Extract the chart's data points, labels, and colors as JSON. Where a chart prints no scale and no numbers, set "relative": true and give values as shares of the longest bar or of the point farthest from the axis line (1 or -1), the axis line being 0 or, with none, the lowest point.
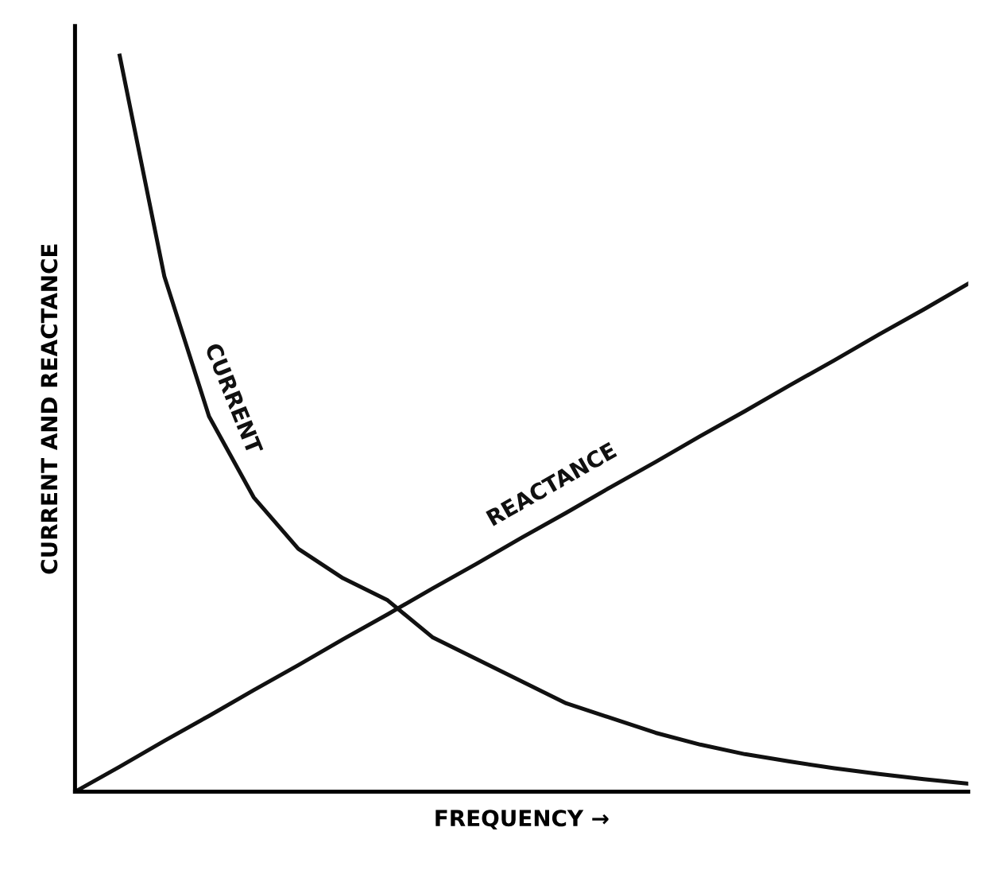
{
  "chart_data": {
    "type": "line",
    "relative": true,
    "xlabel": "FREQUENCY →",
    "ylabel": "CURRENT AND REACTANCE",
    "legend": false,
    "marker": "none",
    "line_style": "solid",
    "categories": [
      null,
      null,
      null,
      null,
      null,
      null,
      null,
      null,
      null,
      null,
      null,
      null,
      null,
      null,
      null,
      null,
      null,
      null,
      null,
      null,
      null
    ],
    "series": [
      {
        "name": "CURRENT",
        "color": "#111111",
        "values": [
          null,
          1.0,
          0.7,
          0.51,
          0.4,
          0.33,
          0.29,
          0.26,
          0.21,
          0.18,
          0.15,
          0.12,
          0.1,
          0.08,
          0.064,
          0.051,
          0.041,
          0.032,
          0.024,
          0.017,
          0.011
        ]
      },
      {
        "name": "REACTANCE",
        "color": "#111111",
        "values": [
          0,
          0.034,
          0.069,
          0.103,
          0.138,
          0.172,
          0.207,
          0.241,
          0.276,
          0.31,
          0.345,
          0.379,
          0.414,
          0.448,
          0.483,
          0.517,
          0.552,
          0.586,
          0.621,
          0.655,
          0.69
        ]
      }
    ]
  }
}
